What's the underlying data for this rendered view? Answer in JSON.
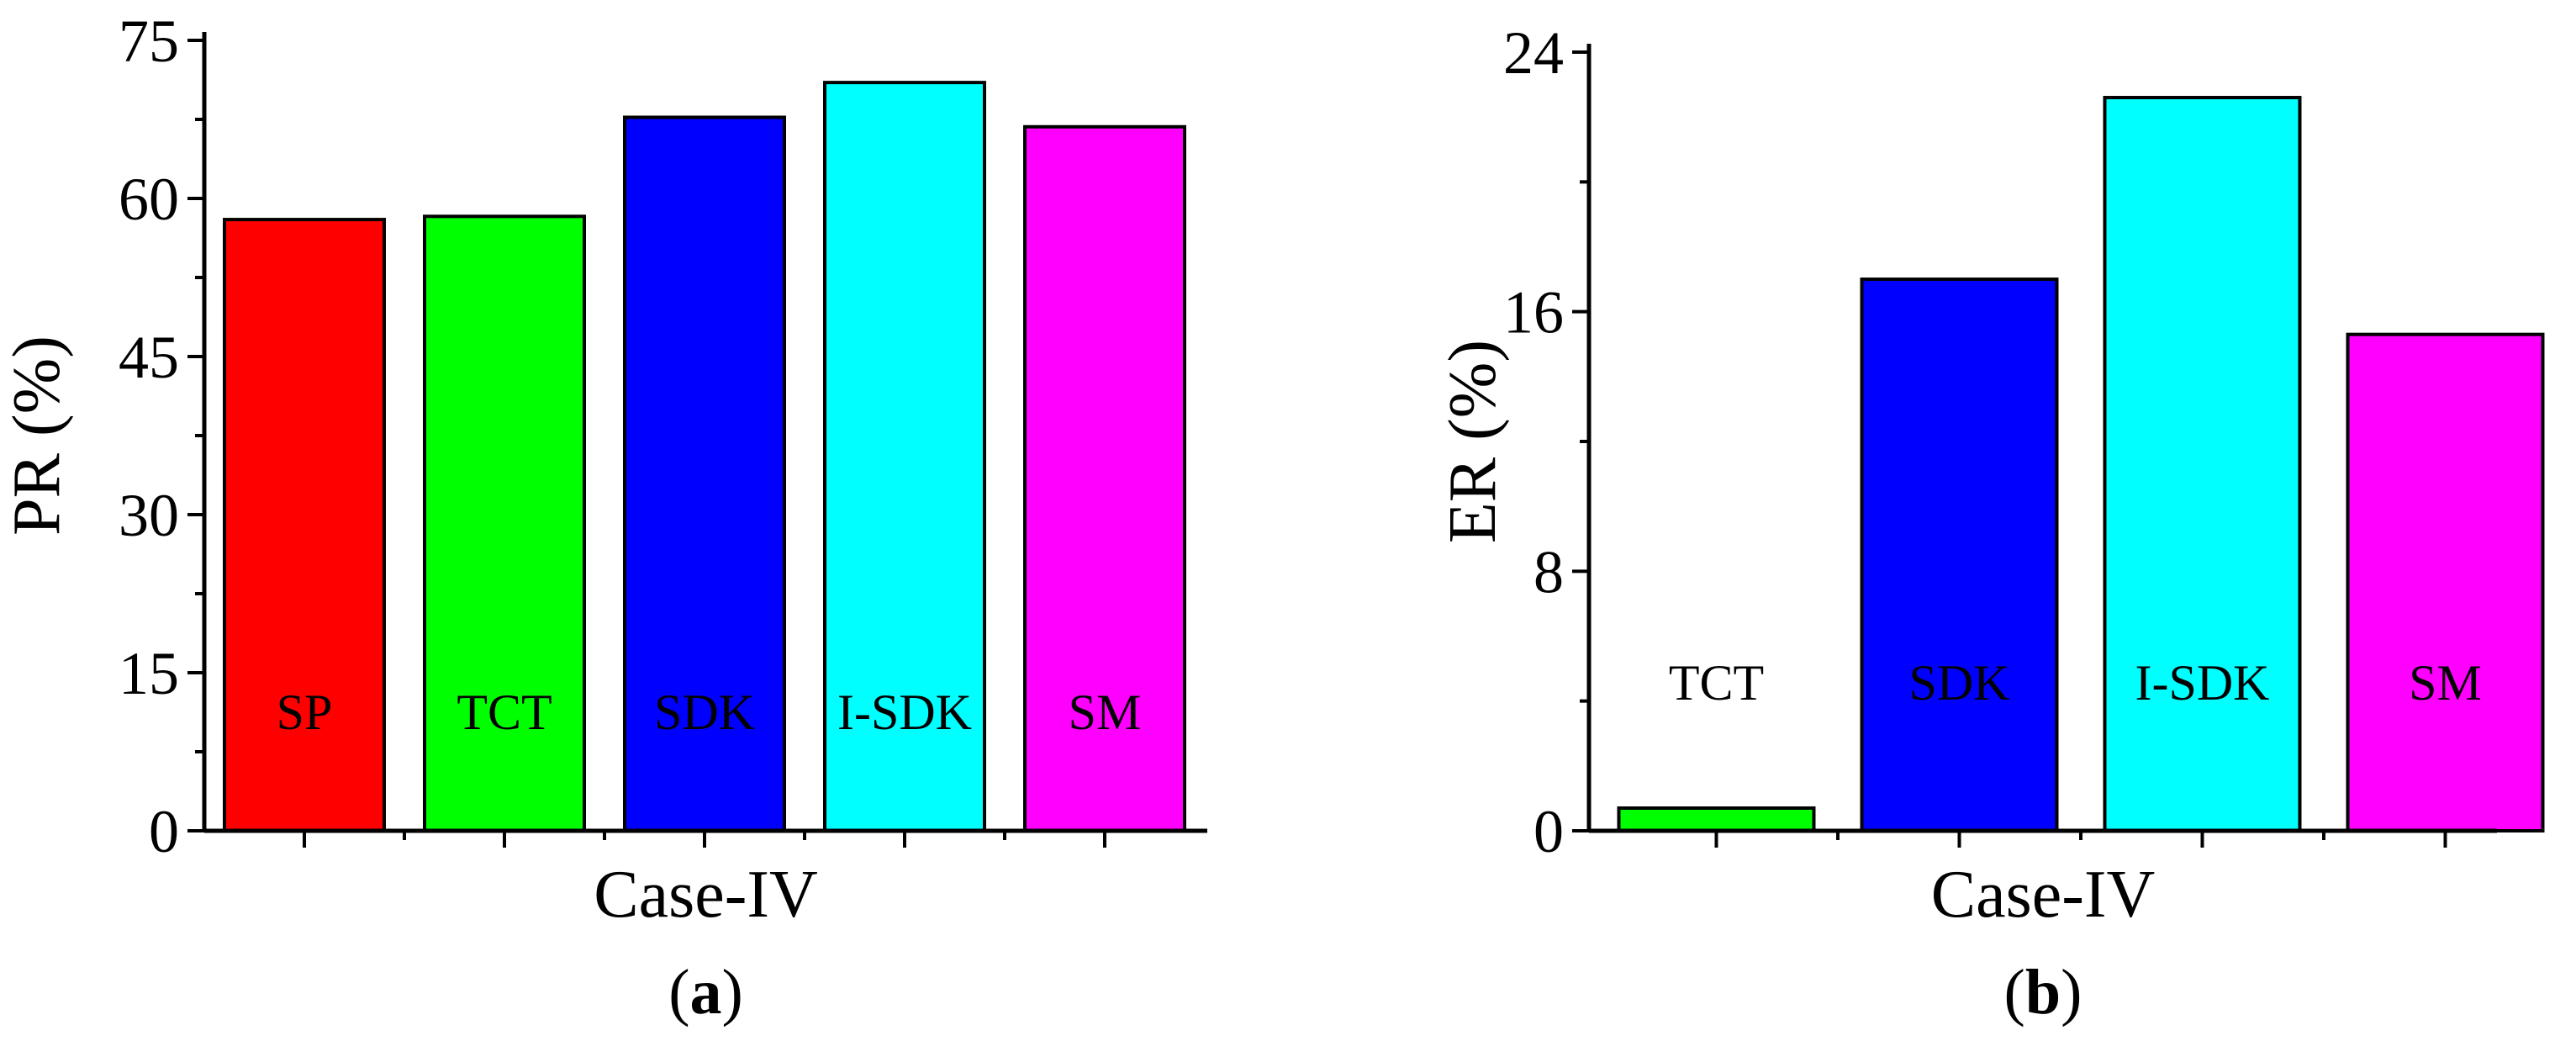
{
  "chart_data": [
    {
      "type": "bar",
      "panel_label": "a",
      "title": "",
      "xlabel": "Case-IV",
      "ylabel": "PR (%)",
      "ylim": [
        0,
        75
      ],
      "yticks": [
        0,
        15,
        30,
        45,
        60,
        75
      ],
      "grid": false,
      "categories": [
        "SP",
        "TCT",
        "SDK",
        "I-SDK",
        "SM"
      ],
      "values": [
        58,
        58.3,
        67.7,
        71,
        66.8
      ],
      "colors": [
        "#ff0000",
        "#00ff00",
        "#0000ff",
        "#00ffff",
        "#ff00ff"
      ]
    },
    {
      "type": "bar",
      "panel_label": "b",
      "title": "",
      "xlabel": "Case-IV",
      "ylabel": "ER (%)",
      "ylim": [
        0,
        24
      ],
      "yticks": [
        0,
        8,
        16,
        24
      ],
      "grid": false,
      "categories": [
        "TCT",
        "SDK",
        "I-SDK",
        "SM"
      ],
      "values": [
        0.7,
        17,
        22.6,
        15.3
      ],
      "colors": [
        "#00ff00",
        "#0000ff",
        "#00ffff",
        "#ff00ff"
      ]
    }
  ]
}
